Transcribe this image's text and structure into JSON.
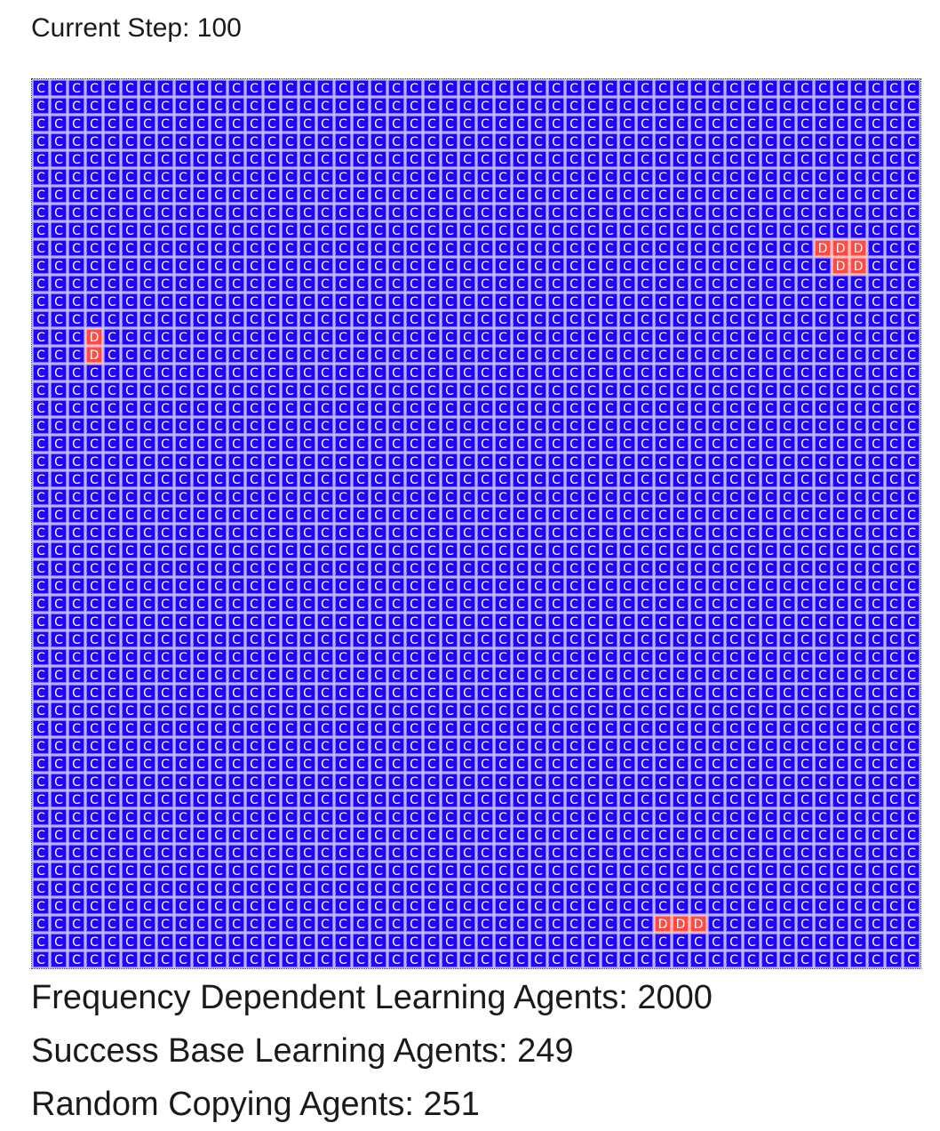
{
  "header": {
    "current_step": "Current Step: 100"
  },
  "grid": {
    "rows": 50,
    "cols": 50,
    "default_state": "C",
    "cell_colors": {
      "C": {
        "fill": "#2200ff",
        "border": "#9999ff",
        "text": "#ffffff"
      },
      "D": {
        "fill": "#ff4b44",
        "border": "#ffaaaa",
        "text": "#ffffff"
      }
    },
    "defectors": [
      {
        "row": 9,
        "col": 44
      },
      {
        "row": 9,
        "col": 45
      },
      {
        "row": 9,
        "col": 46
      },
      {
        "row": 10,
        "col": 45
      },
      {
        "row": 10,
        "col": 46
      },
      {
        "row": 14,
        "col": 3
      },
      {
        "row": 15,
        "col": 3
      },
      {
        "row": 47,
        "col": 35
      },
      {
        "row": 47,
        "col": 36
      },
      {
        "row": 47,
        "col": 37
      }
    ]
  },
  "stats": {
    "frequency_dependent": "Frequency Dependent Learning Agents: 2000",
    "success_based": "Success Base Learning Agents: 249",
    "random_copying": "Random Copying Agents: 251"
  }
}
